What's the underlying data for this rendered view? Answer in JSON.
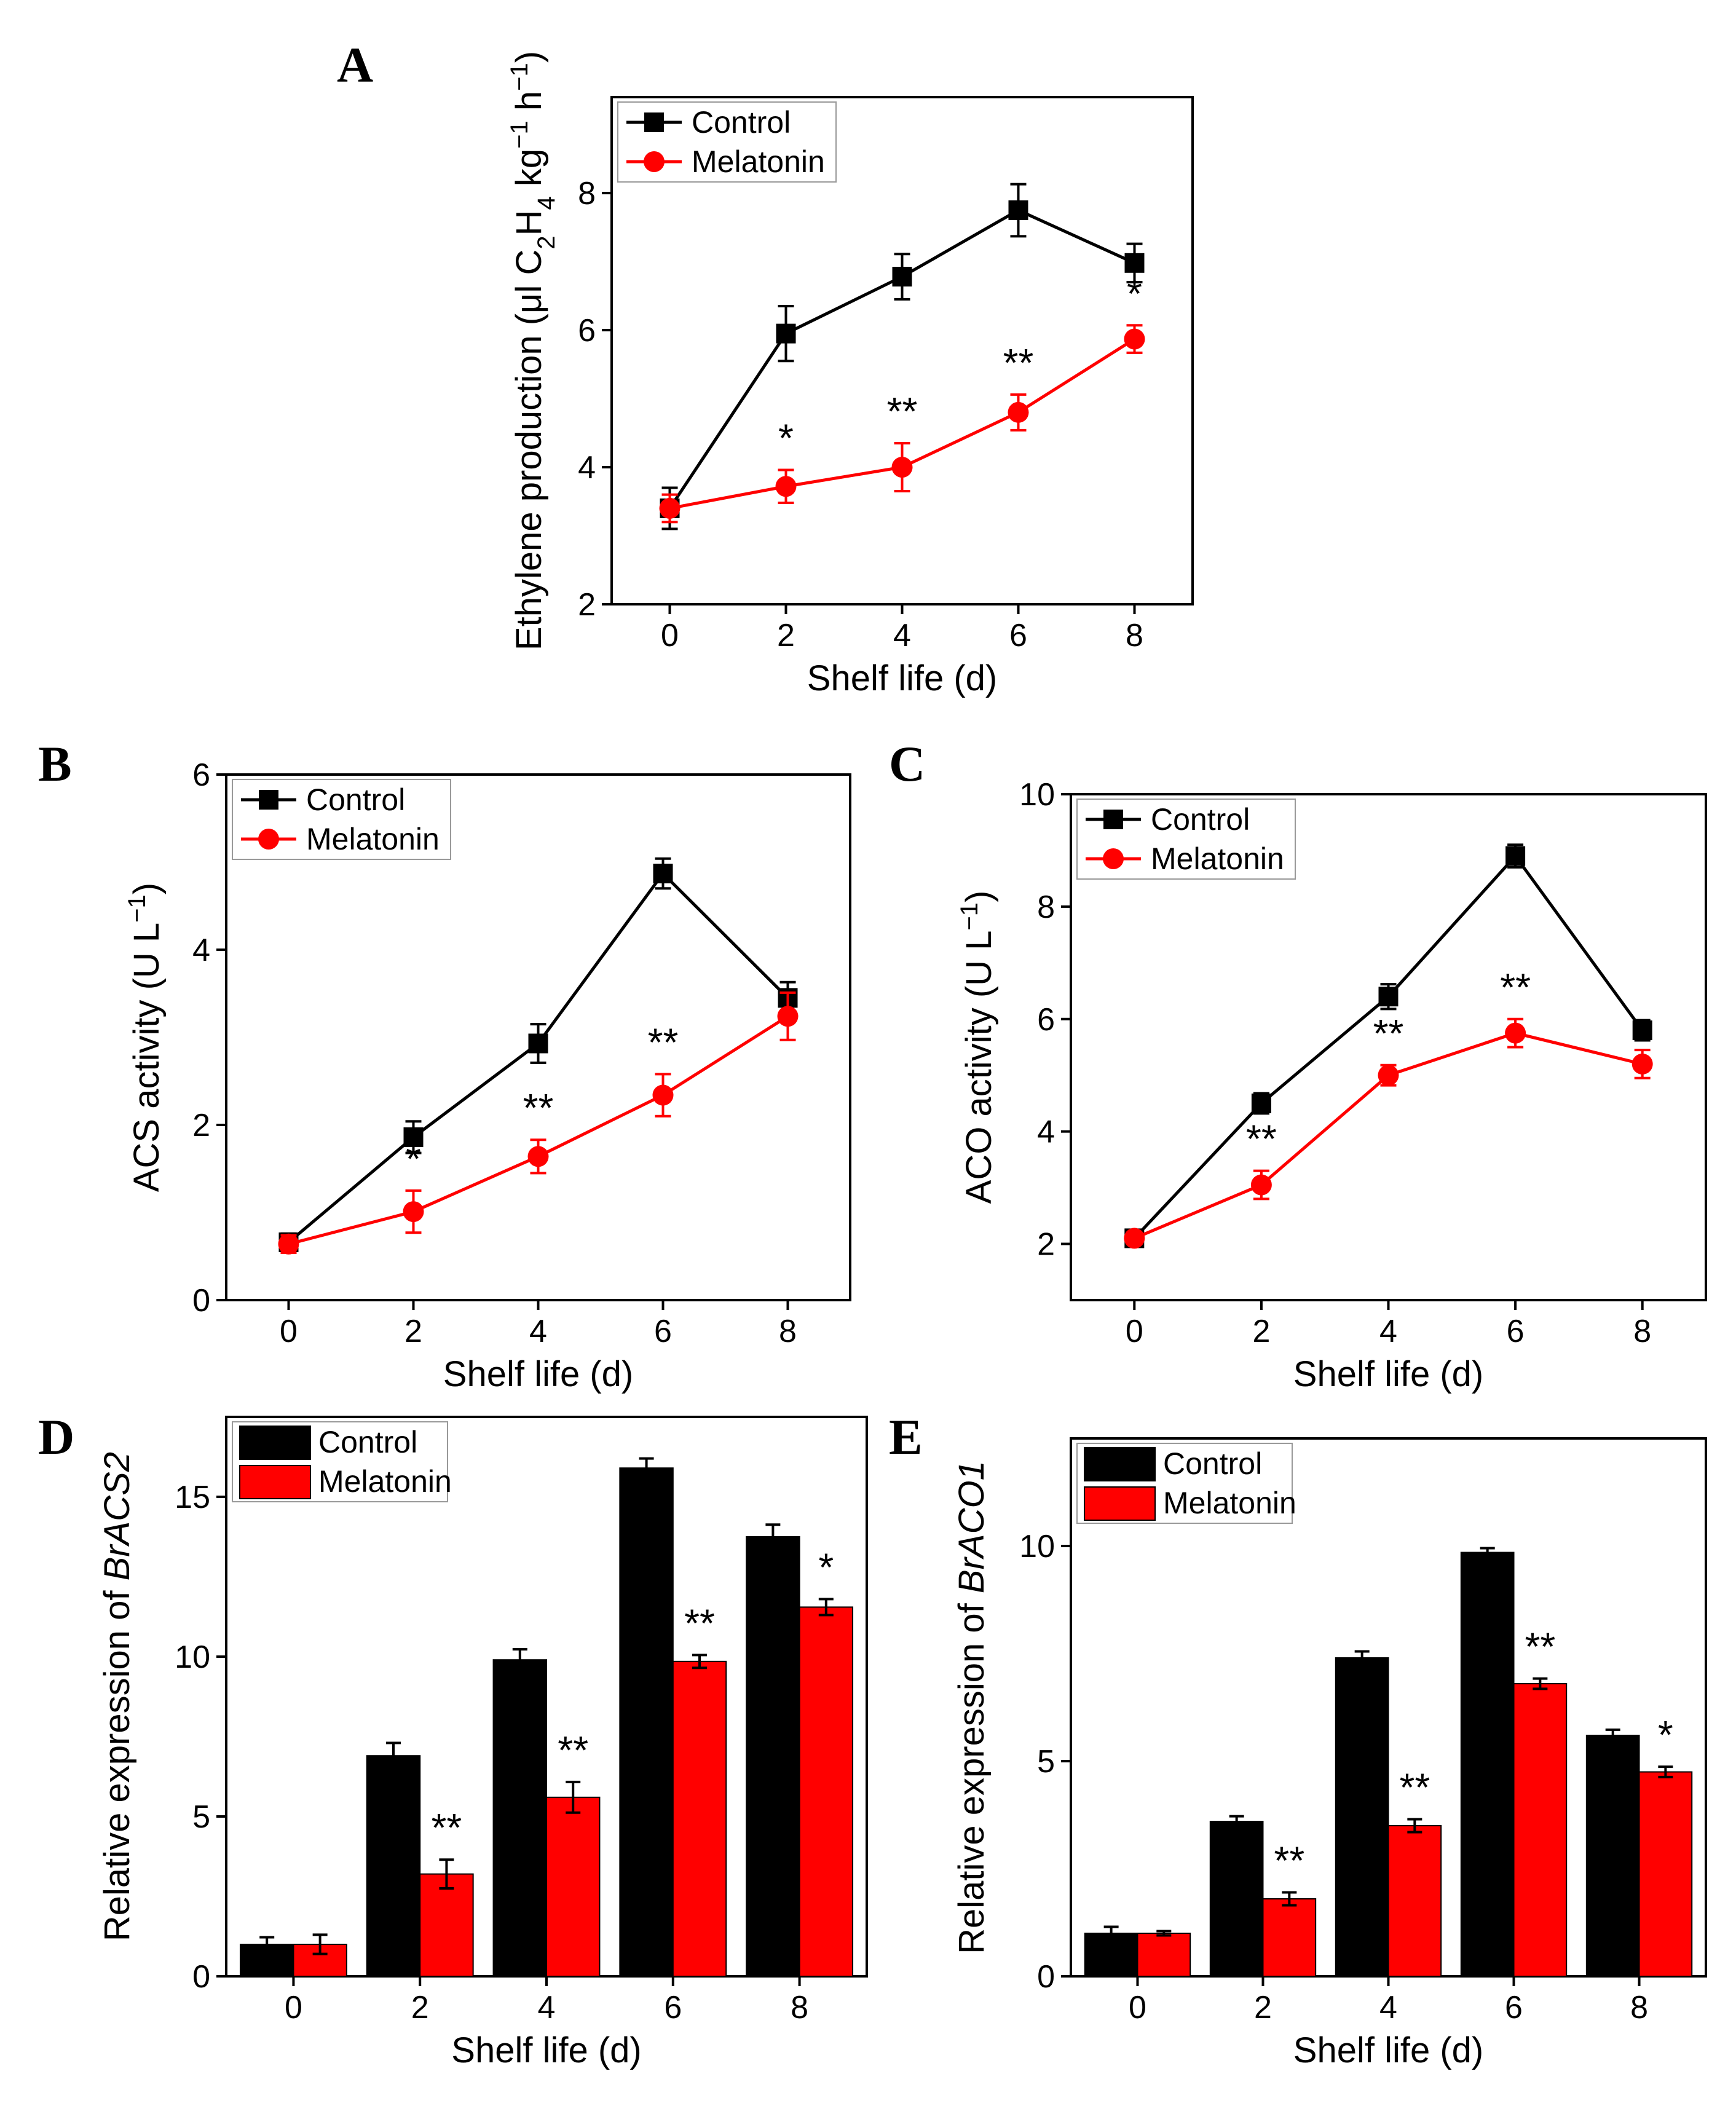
{
  "colors": {
    "control": "#000000",
    "melatonin": "#ff0000",
    "axis": "#000000"
  },
  "chart_data": [
    {
      "id": "A",
      "panel_label": "A",
      "type": "line",
      "xlabel": "Shelf life (d)",
      "ylabel_parts": [
        "Ethylene production (μl C",
        "2",
        "H",
        "4",
        " kg",
        "−1",
        " h",
        "−1",
        ")"
      ],
      "ylabel_text": "Ethylene production (μl C2H4 kg−1 h−1)",
      "xlim": [
        -1,
        9
      ],
      "ylim": [
        2,
        9.4
      ],
      "xticks": [
        0,
        2,
        4,
        6,
        8
      ],
      "yticks": [
        2,
        4,
        6,
        8
      ],
      "x": [
        0,
        2,
        4,
        6,
        8
      ],
      "series": [
        {
          "name": "Control",
          "marker": "square",
          "values": [
            3.4,
            5.95,
            6.78,
            7.75,
            6.98
          ],
          "errors": [
            0.3,
            0.4,
            0.33,
            0.38,
            0.28
          ]
        },
        {
          "name": "Melatonin",
          "marker": "circle",
          "values": [
            3.4,
            3.72,
            4.0,
            4.8,
            5.87
          ],
          "errors": [
            0.2,
            0.24,
            0.35,
            0.26,
            0.2
          ]
        }
      ],
      "annotations": [
        {
          "x": 2,
          "text": "*"
        },
        {
          "x": 4,
          "text": "**"
        },
        {
          "x": 6,
          "text": "**"
        },
        {
          "x": 8,
          "text": "*"
        }
      ],
      "legend": "top-left"
    },
    {
      "id": "B",
      "panel_label": "B",
      "type": "line",
      "xlabel": "Shelf life (d)",
      "ylabel_parts": [
        "ACS activity (U L",
        "−1",
        ")"
      ],
      "ylabel_text": "ACS activity (U L−1)",
      "xlim": [
        -1,
        9
      ],
      "ylim": [
        0,
        6
      ],
      "xticks": [
        0,
        2,
        4,
        6,
        8
      ],
      "yticks": [
        0,
        2,
        4,
        6
      ],
      "x": [
        0,
        2,
        4,
        6,
        8
      ],
      "series": [
        {
          "name": "Control",
          "marker": "square",
          "values": [
            0.66,
            1.86,
            2.93,
            4.87,
            3.45
          ],
          "errors": [
            0.1,
            0.18,
            0.22,
            0.17,
            0.18
          ]
        },
        {
          "name": "Melatonin",
          "marker": "circle",
          "values": [
            0.64,
            1.01,
            1.64,
            2.34,
            3.24
          ],
          "errors": [
            0.1,
            0.24,
            0.19,
            0.24,
            0.27
          ]
        }
      ],
      "annotations": [
        {
          "x": 2,
          "text": "*"
        },
        {
          "x": 4,
          "text": "**"
        },
        {
          "x": 6,
          "text": "**"
        }
      ],
      "legend": "top-left"
    },
    {
      "id": "C",
      "panel_label": "C",
      "type": "line",
      "xlabel": "Shelf life (d)",
      "ylabel_parts": [
        "ACO activity (U L",
        "−1",
        ")"
      ],
      "ylabel_text": "ACO activity (U L−1)",
      "xlim": [
        -1,
        9
      ],
      "ylim": [
        1,
        10
      ],
      "xticks": [
        0,
        2,
        4,
        6,
        8
      ],
      "yticks": [
        2,
        4,
        6,
        8,
        10
      ],
      "x": [
        0,
        2,
        4,
        6,
        8
      ],
      "series": [
        {
          "name": "Control",
          "marker": "square",
          "values": [
            2.1,
            4.5,
            6.4,
            8.9,
            5.8
          ],
          "errors": [
            0.1,
            0.18,
            0.22,
            0.2,
            0.18
          ]
        },
        {
          "name": "Melatonin",
          "marker": "circle",
          "values": [
            2.1,
            3.05,
            5.0,
            5.75,
            5.2
          ],
          "errors": [
            0.1,
            0.25,
            0.18,
            0.25,
            0.25
          ]
        }
      ],
      "annotations": [
        {
          "x": 2,
          "text": "**"
        },
        {
          "x": 4,
          "text": "**"
        },
        {
          "x": 6,
          "text": "**"
        }
      ],
      "legend": "top-left"
    },
    {
      "id": "D",
      "panel_label": "D",
      "type": "bar",
      "xlabel": "Shelf life (d)",
      "ylabel_parts": [
        "Relative expression of ",
        "BrACS2"
      ],
      "ylabel_text": "Relative expression of BrACS2",
      "categories": [
        "0",
        "2",
        "4",
        "6",
        "8"
      ],
      "ylim": [
        0,
        17.5
      ],
      "yticks": [
        0,
        5,
        10,
        15
      ],
      "series": [
        {
          "name": "Control",
          "values": [
            1.0,
            6.9,
            9.9,
            15.9,
            13.75
          ],
          "errors": [
            0.22,
            0.4,
            0.33,
            0.3,
            0.38
          ]
        },
        {
          "name": "Melatonin",
          "values": [
            1.0,
            3.2,
            5.6,
            9.85,
            11.55
          ],
          "errors": [
            0.3,
            0.45,
            0.48,
            0.2,
            0.25
          ]
        }
      ],
      "annotations": [
        {
          "category": "2",
          "text": "**"
        },
        {
          "category": "4",
          "text": "**"
        },
        {
          "category": "6",
          "text": "**"
        },
        {
          "category": "8",
          "text": "*"
        }
      ],
      "legend": "top-left"
    },
    {
      "id": "E",
      "panel_label": "E",
      "type": "bar",
      "xlabel": "Shelf life (d)",
      "ylabel_parts": [
        "Relative expression of ",
        "BrACO1"
      ],
      "ylabel_text": "Relative expression of BrACO1",
      "categories": [
        "0",
        "2",
        "4",
        "6",
        "8"
      ],
      "ylim": [
        0,
        12.5
      ],
      "yticks": [
        0,
        5,
        10
      ],
      "series": [
        {
          "name": "Control",
          "values": [
            1.0,
            3.6,
            7.4,
            9.85,
            5.6
          ],
          "errors": [
            0.15,
            0.12,
            0.15,
            0.1,
            0.13
          ]
        },
        {
          "name": "Melatonin",
          "values": [
            1.0,
            1.8,
            3.5,
            6.8,
            4.75
          ],
          "errors": [
            0.05,
            0.15,
            0.15,
            0.12,
            0.12
          ]
        }
      ],
      "annotations": [
        {
          "category": "2",
          "text": "**"
        },
        {
          "category": "4",
          "text": "**"
        },
        {
          "category": "6",
          "text": "**"
        },
        {
          "category": "8",
          "text": "*"
        }
      ],
      "legend": "top-left"
    }
  ]
}
